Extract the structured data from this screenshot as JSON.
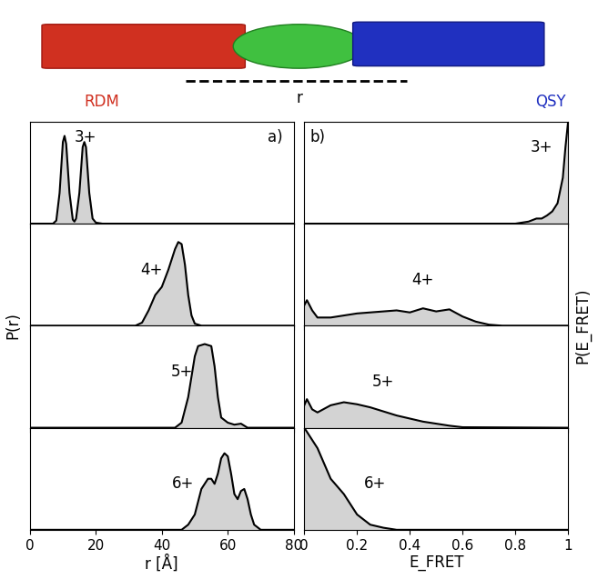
{
  "header": {
    "labels": [
      "RDM",
      "QSY"
    ],
    "distance_label": "r"
  },
  "chart_data": [
    {
      "type": "area",
      "annotations": [
        "3+",
        "a)"
      ],
      "y_label": "P(r)",
      "color": "#d3d3d3",
      "x": [
        0,
        7,
        8,
        9,
        10,
        10.5,
        11,
        12,
        13,
        13.5,
        14,
        15,
        16,
        16.5,
        17,
        18,
        19,
        20,
        22,
        80
      ],
      "values": [
        0,
        0,
        0.03,
        0.3,
        0.8,
        0.86,
        0.78,
        0.3,
        0.04,
        0.02,
        0.05,
        0.3,
        0.75,
        0.8,
        0.75,
        0.3,
        0.05,
        0.01,
        0,
        0
      ],
      "xlim": [
        0,
        80
      ],
      "xticks": [
        0,
        20,
        40,
        60,
        80
      ],
      "ylim": [
        0,
        1
      ],
      "tick_labels": false
    },
    {
      "type": "area",
      "annotations": [
        "4+"
      ],
      "color": "#d3d3d3",
      "x": [
        0,
        32,
        34,
        36,
        38,
        40,
        42,
        44,
        45,
        46,
        47,
        48,
        49,
        50,
        52,
        80
      ],
      "values": [
        0,
        0,
        0.03,
        0.15,
        0.3,
        0.38,
        0.55,
        0.75,
        0.82,
        0.8,
        0.6,
        0.3,
        0.1,
        0.02,
        0,
        0
      ],
      "xlim": [
        0,
        80
      ],
      "xticks": [
        0,
        20,
        40,
        60,
        80
      ],
      "ylim": [
        0,
        1
      ],
      "tick_labels": false
    },
    {
      "type": "area",
      "annotations": [
        "5+"
      ],
      "color": "#d3d3d3",
      "x": [
        0,
        44,
        46,
        48,
        50,
        51,
        53,
        55,
        56,
        57,
        58,
        60,
        62,
        64,
        66,
        80
      ],
      "values": [
        0,
        0,
        0.05,
        0.3,
        0.7,
        0.8,
        0.82,
        0.8,
        0.6,
        0.3,
        0.1,
        0.05,
        0.03,
        0.04,
        0,
        0
      ],
      "xlim": [
        0,
        80
      ],
      "xticks": [
        0,
        20,
        40,
        60,
        80
      ],
      "ylim": [
        0,
        1
      ],
      "tick_labels": false
    },
    {
      "type": "area",
      "annotations": [
        "6+"
      ],
      "x_label": "r [Å]",
      "color": "#d3d3d3",
      "x": [
        0,
        46,
        48,
        50,
        52,
        54,
        55,
        56,
        57,
        58,
        59,
        60,
        61,
        62,
        63,
        64,
        65,
        66,
        67,
        68,
        70,
        80
      ],
      "values": [
        0,
        0,
        0.05,
        0.15,
        0.4,
        0.5,
        0.5,
        0.45,
        0.55,
        0.7,
        0.75,
        0.72,
        0.55,
        0.35,
        0.3,
        0.38,
        0.4,
        0.3,
        0.15,
        0.05,
        0,
        0
      ],
      "xlim": [
        0,
        80
      ],
      "xticks": [
        0,
        20,
        40,
        60,
        80
      ],
      "ylim": [
        0,
        1
      ],
      "tick_labels": "x"
    },
    {
      "type": "area",
      "annotations": [
        "3+",
        "b)"
      ],
      "y_label": "P(E_FRET)",
      "color": "#d3d3d3",
      "x": [
        0,
        0.8,
        0.85,
        0.88,
        0.9,
        0.92,
        0.94,
        0.96,
        0.98,
        0.99,
        1
      ],
      "values": [
        0,
        0,
        0.02,
        0.05,
        0.05,
        0.08,
        0.12,
        0.2,
        0.45,
        0.75,
        1.0
      ],
      "xlim": [
        0,
        1
      ],
      "xticks": [
        0,
        0.2,
        0.4,
        0.6,
        0.8,
        1
      ],
      "ylim": [
        0,
        1
      ],
      "tick_labels": false
    },
    {
      "type": "area",
      "annotations": [
        "4+"
      ],
      "color": "#d3d3d3",
      "x": [
        0,
        0.01,
        0.03,
        0.05,
        0.1,
        0.2,
        0.3,
        0.35,
        0.4,
        0.45,
        0.5,
        0.55,
        0.6,
        0.65,
        0.7,
        0.75,
        1
      ],
      "values": [
        0.2,
        0.25,
        0.15,
        0.08,
        0.08,
        0.12,
        0.14,
        0.15,
        0.13,
        0.17,
        0.14,
        0.16,
        0.09,
        0.04,
        0.01,
        0,
        0
      ],
      "xlim": [
        0,
        1
      ],
      "xticks": [
        0,
        0.2,
        0.4,
        0.6,
        0.8,
        1
      ],
      "ylim": [
        0,
        1
      ],
      "tick_labels": false
    },
    {
      "type": "area",
      "annotations": [
        "5+"
      ],
      "color": "#d3d3d3",
      "x": [
        0,
        0.01,
        0.03,
        0.05,
        0.1,
        0.15,
        0.2,
        0.25,
        0.3,
        0.35,
        0.4,
        0.45,
        0.5,
        0.55,
        0.6,
        1
      ],
      "values": [
        0.22,
        0.28,
        0.18,
        0.15,
        0.22,
        0.25,
        0.23,
        0.2,
        0.16,
        0.12,
        0.09,
        0.06,
        0.04,
        0.02,
        0.005,
        0
      ],
      "xlim": [
        0,
        1
      ],
      "xticks": [
        0,
        0.2,
        0.4,
        0.6,
        0.8,
        1
      ],
      "ylim": [
        0,
        1
      ],
      "tick_labels": false
    },
    {
      "type": "area",
      "annotations": [
        "6+"
      ],
      "x_label": "E_FRET",
      "color": "#d3d3d3",
      "x": [
        0,
        0.05,
        0.1,
        0.15,
        0.2,
        0.25,
        0.3,
        0.35,
        1
      ],
      "values": [
        1.0,
        0.8,
        0.5,
        0.35,
        0.15,
        0.05,
        0.02,
        0,
        0
      ],
      "xlim": [
        0,
        1
      ],
      "xticks": [
        0,
        0.2,
        0.4,
        0.6,
        0.8,
        1
      ],
      "ylim": [
        0,
        1
      ],
      "tick_labels": "x"
    }
  ]
}
